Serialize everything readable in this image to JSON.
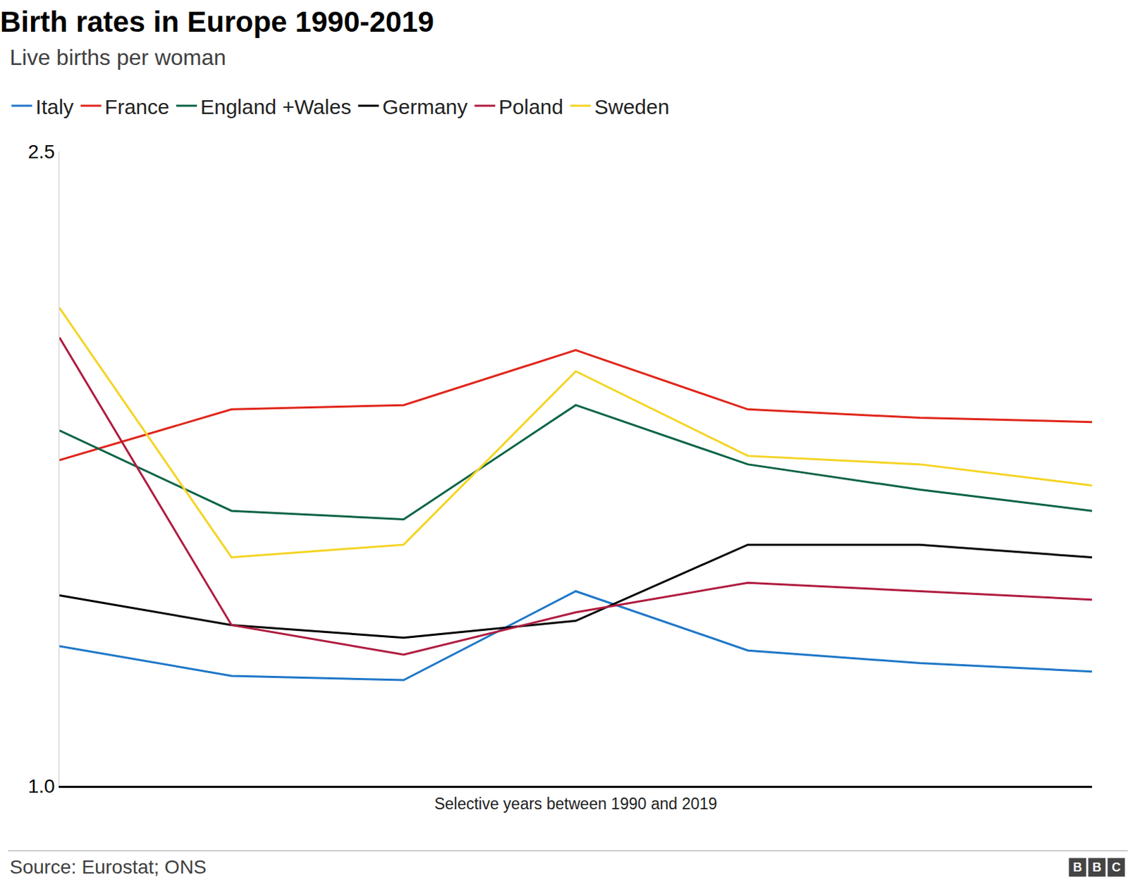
{
  "chart_data": {
    "type": "line",
    "title": "Birth rates in Europe 1990-2019",
    "subtitle": "Live births per woman",
    "x_label": "Selective years between 1990 and 2019",
    "source": "Source: Eurostat; ONS",
    "logo": "BBC",
    "categories": [
      null,
      null,
      null,
      null,
      null,
      null,
      null
    ],
    "series": [
      {
        "name": "Italy",
        "color": "#1f77c8",
        "values": [
          1.33,
          1.26,
          1.25,
          1.46,
          1.32,
          1.29,
          1.27
        ]
      },
      {
        "name": "France",
        "color": "#e0261b",
        "values": [
          1.77,
          1.89,
          1.9,
          2.03,
          1.89,
          1.87,
          1.86
        ]
      },
      {
        "name": "England +Wales",
        "color": "#0c6444",
        "values": [
          1.84,
          1.65,
          1.63,
          1.9,
          1.76,
          1.7,
          1.65
        ]
      },
      {
        "name": "Germany",
        "color": "#000000",
        "values": [
          1.45,
          1.38,
          1.35,
          1.39,
          1.57,
          1.57,
          1.54
        ]
      },
      {
        "name": "Poland",
        "color": "#b01c40",
        "values": [
          2.06,
          1.38,
          1.31,
          1.41,
          1.48,
          1.46,
          1.44
        ]
      },
      {
        "name": "Sweden",
        "color": "#f5d422",
        "values": [
          2.13,
          1.54,
          1.57,
          1.98,
          1.78,
          1.76,
          1.71
        ]
      }
    ],
    "ylim": [
      1.0,
      2.5
    ],
    "yticks": [
      {
        "value": 1.0,
        "label": "1.0"
      },
      {
        "value": 2.5,
        "label": "2.5"
      }
    ],
    "grid": false,
    "legend": "top",
    "tick_labels": "y"
  }
}
